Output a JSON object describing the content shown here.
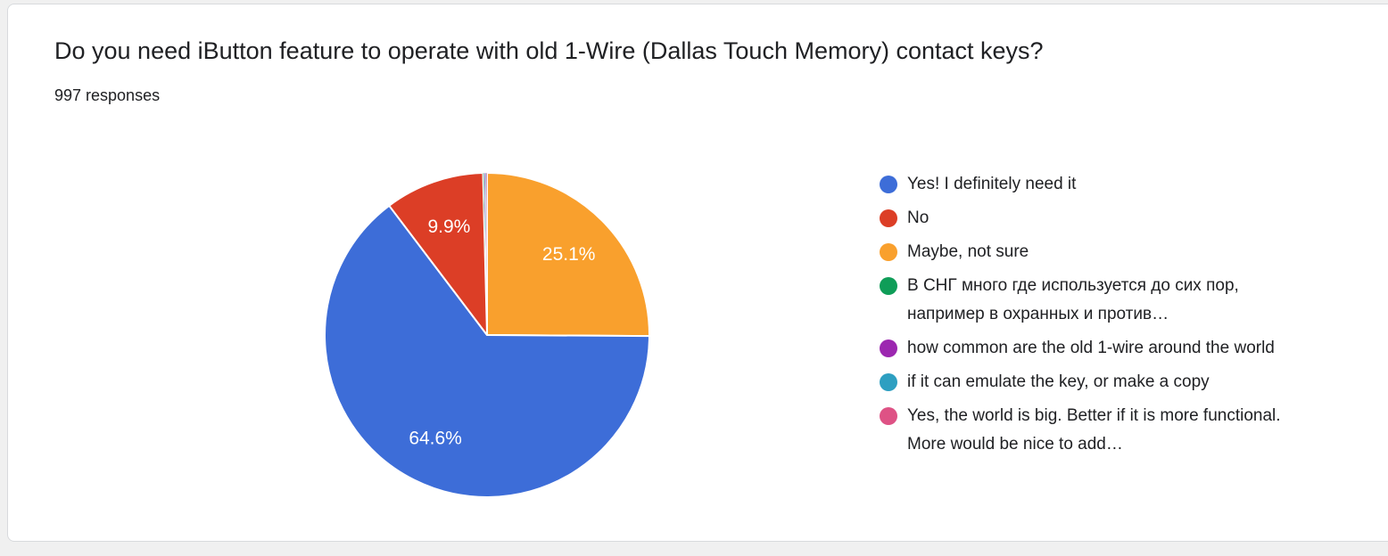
{
  "page": {
    "background_color": "#f0f0f0",
    "card_background": "#ffffff",
    "card_border_color": "#d8dadd"
  },
  "header": {
    "title": "Do you need iButton feature to operate with old 1-Wire (Dallas Touch Memory) contact keys?",
    "responses": "997 responses"
  },
  "chart_data": {
    "type": "pie",
    "title": "Do you need iButton feature to operate with old 1-Wire (Dallas Touch Memory) contact keys?",
    "subtitle": "997 responses",
    "legend_position": "right",
    "slice_label_color": "#ffffff",
    "label_threshold_percent": 5,
    "start_angle_deg": 0,
    "clockwise_draw_order": [
      2,
      0,
      1,
      3,
      4,
      5,
      6
    ],
    "slices": [
      {
        "label": "Yes! I definitely need it",
        "percent": 64.6,
        "color": "#3d6dd8"
      },
      {
        "label": "No",
        "percent": 9.9,
        "color": "#dc3e26"
      },
      {
        "label": "Maybe, not sure",
        "percent": 25.1,
        "color": "#f9a02d"
      },
      {
        "label": "В СНГ много где используется до сих пор, например в охранных и против…",
        "percent": 0.1,
        "color": "#0f9d58"
      },
      {
        "label": "how common are the old 1-wire around the world",
        "percent": 0.1,
        "color": "#9c27b0"
      },
      {
        "label": "if it can emulate the key, or make a copy",
        "percent": 0.1,
        "color": "#2d9fc1"
      },
      {
        "label": "Yes, the world is big. Better if it is more functional. More would be nice to add…",
        "percent": 0.1,
        "color": "#de5285"
      }
    ]
  }
}
